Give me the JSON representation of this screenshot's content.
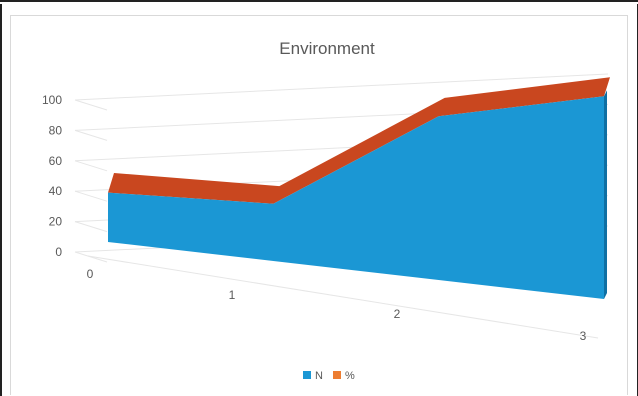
{
  "chart_data": {
    "type": "area",
    "title": "Environment",
    "xlabel": "",
    "ylabel": "",
    "x": [
      0,
      1,
      2,
      3
    ],
    "x_tick_labels": [
      "0",
      "1",
      "2",
      "3"
    ],
    "y_tick_labels": [
      "0",
      "20",
      "40",
      "60",
      "80",
      "100"
    ],
    "ylim": [
      0,
      100
    ],
    "stacked": true,
    "view": "3d",
    "grid": true,
    "legend_position": "bottom",
    "series": [
      {
        "name": "N",
        "values": [
          19,
          22,
          63,
          78
        ],
        "color": "#1b97d4"
      },
      {
        "name": "%",
        "values": [
          6,
          5,
          5,
          5
        ],
        "color": "#c9471f"
      }
    ]
  }
}
